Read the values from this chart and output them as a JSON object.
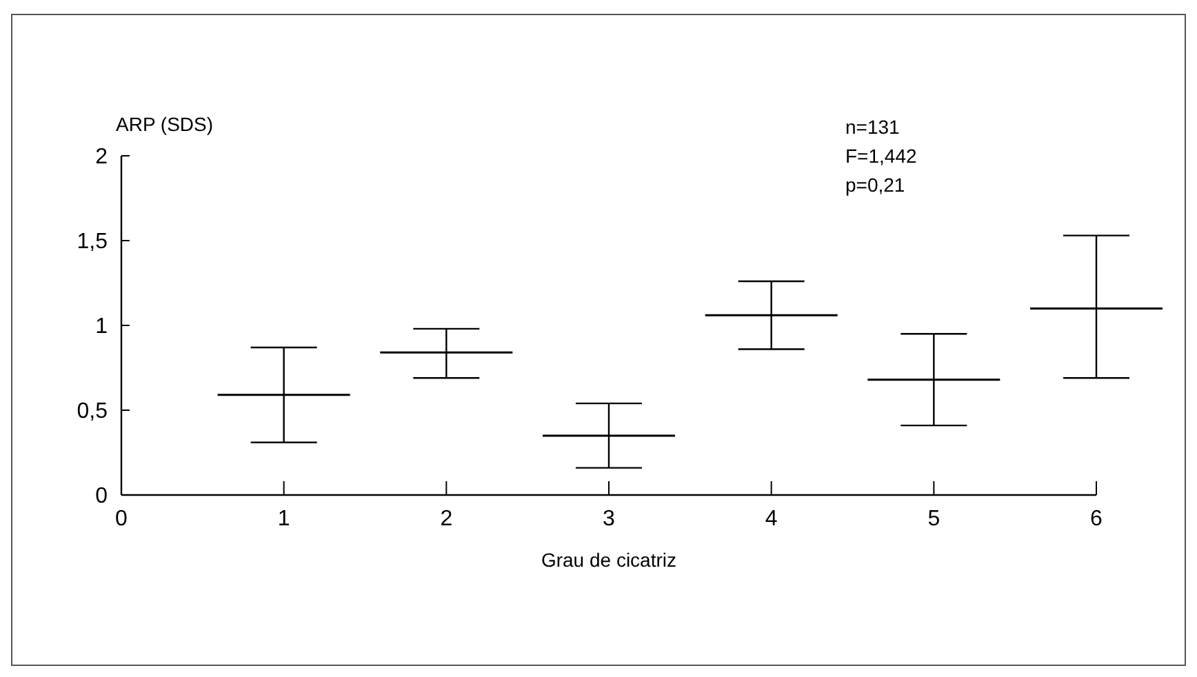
{
  "chart_data": {
    "type": "box",
    "xlabel": "Grau de cicatriz",
    "ylabel": "ARP (SDS)",
    "x": [
      1,
      2,
      3,
      4,
      5,
      6
    ],
    "boxes": [
      {
        "low": 0.31,
        "q1": 0.59,
        "median": 0.59,
        "q3": 0.59,
        "high": 0.87
      },
      {
        "low": 0.69,
        "q1": 0.84,
        "median": 0.84,
        "q3": 0.84,
        "high": 0.98
      },
      {
        "low": 0.16,
        "q1": 0.35,
        "median": 0.35,
        "q3": 0.35,
        "high": 0.54
      },
      {
        "low": 0.86,
        "q1": 1.06,
        "median": 1.06,
        "q3": 1.06,
        "high": 1.26
      },
      {
        "low": 0.41,
        "q1": 0.68,
        "median": 0.68,
        "q3": 0.68,
        "high": 0.95
      },
      {
        "low": 0.69,
        "q1": 1.1,
        "median": 1.1,
        "q3": 1.1,
        "high": 1.53
      }
    ],
    "color": "#000000",
    "xlim": [
      0,
      6
    ],
    "xticks": [
      0,
      1,
      2,
      3,
      4,
      5,
      6
    ],
    "ylim": [
      0,
      2
    ],
    "yticks": [
      0,
      {
        "value": 0.5,
        "label": "0,5"
      },
      1,
      {
        "value": 1.5,
        "label": "1,5"
      },
      2
    ],
    "grid": false,
    "annotations": [
      "n=131",
      "F=1,442",
      "p=0,21"
    ]
  }
}
